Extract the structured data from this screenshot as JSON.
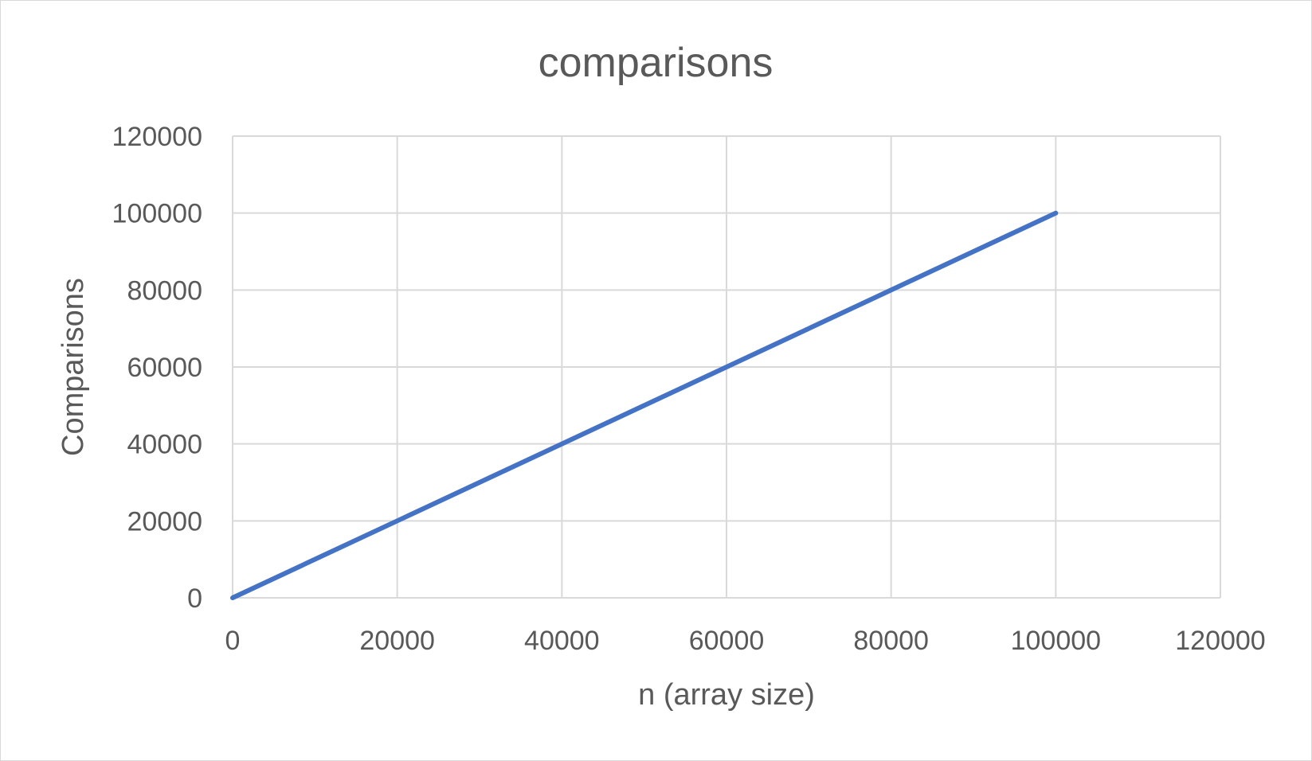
{
  "chart_data": {
    "type": "line",
    "title": "comparisons",
    "xlabel": "n (array size)",
    "ylabel": "Comparisons",
    "xlim": [
      0,
      120000
    ],
    "ylim": [
      0,
      120000
    ],
    "x_ticks": [
      "0",
      "20000",
      "40000",
      "60000",
      "80000",
      "100000",
      "120000"
    ],
    "y_ticks": [
      "0",
      "20000",
      "40000",
      "60000",
      "80000",
      "100000",
      "120000"
    ],
    "grid": true,
    "legend": "none",
    "series": [
      {
        "color": "#4472c4",
        "points": [
          {
            "x": 0,
            "y": 0
          },
          {
            "x": 100000,
            "y": 100000
          }
        ]
      }
    ]
  }
}
